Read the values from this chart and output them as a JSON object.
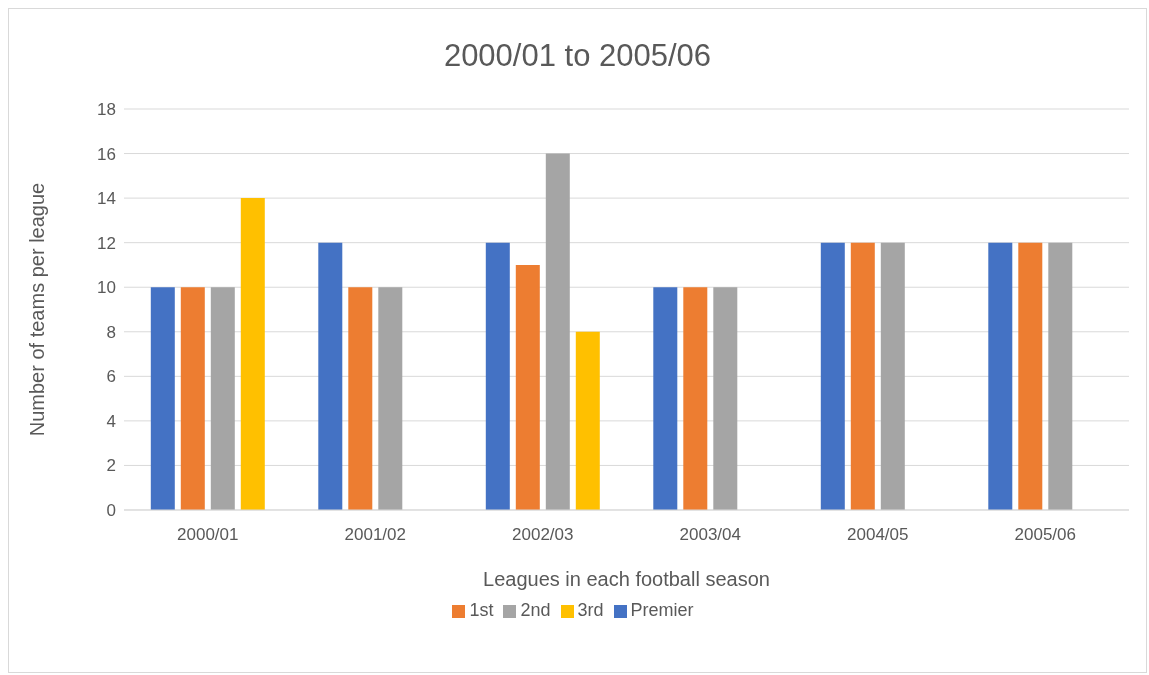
{
  "chart_data": {
    "type": "bar",
    "title": "2000/01 to 2005/06",
    "xlabel": "Leagues in each football season",
    "ylabel": "Number of teams per league",
    "categories": [
      "2000/01",
      "2001/02",
      "2002/03",
      "2003/04",
      "2004/05",
      "2005/06"
    ],
    "series": [
      {
        "name": "Premier",
        "color": "#4472c4",
        "values": [
          10,
          12,
          12,
          10,
          12,
          12
        ]
      },
      {
        "name": "1st",
        "color": "#ed7d31",
        "values": [
          10,
          10,
          11,
          10,
          12,
          12
        ]
      },
      {
        "name": "2nd",
        "color": "#a5a5a5",
        "values": [
          10,
          10,
          16,
          10,
          12,
          12
        ]
      },
      {
        "name": "3rd",
        "color": "#ffc000",
        "values": [
          14,
          null,
          8,
          null,
          null,
          null
        ]
      }
    ],
    "ylim": [
      0,
      18
    ],
    "yticks": [
      0,
      2,
      4,
      6,
      8,
      10,
      12,
      14,
      16,
      18
    ],
    "grid": "y",
    "legend": "bottom"
  }
}
